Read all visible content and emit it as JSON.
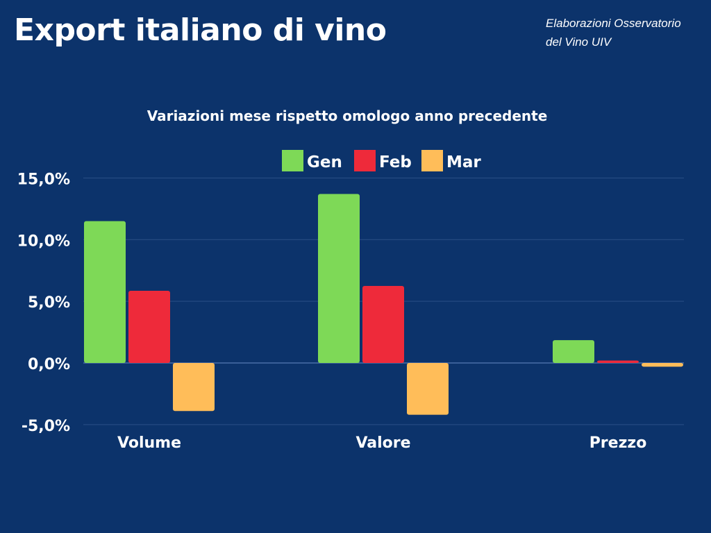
{
  "header": {
    "title": "Export italiano di vino",
    "source": [
      "Elaborazioni Osservatorio",
      "del Vino UIV"
    ]
  },
  "chart_data": {
    "type": "bar",
    "title": "Variazioni mese rispetto omologo anno precedente",
    "categories": [
      "Volume",
      "Valore",
      "Prezzo"
    ],
    "series": [
      {
        "name": "Gen",
        "color": "#7ed957",
        "values": [
          11.5,
          13.7,
          1.85
        ]
      },
      {
        "name": "Feb",
        "color": "#ee2a3a",
        "values": [
          5.85,
          6.25,
          0.2
        ]
      },
      {
        "name": "Mar",
        "color": "#ffbd59",
        "values": [
          -3.9,
          -4.2,
          -0.3
        ]
      }
    ],
    "ylim": [
      -5,
      15
    ],
    "yticks": [
      15,
      10,
      5,
      0,
      -5
    ],
    "ytick_labels": [
      "15,0%",
      "10,0%",
      "5,0%",
      "0,0%",
      "-5,0%"
    ],
    "grid": true,
    "legend": "top-center",
    "xlabel": "",
    "ylabel": ""
  }
}
